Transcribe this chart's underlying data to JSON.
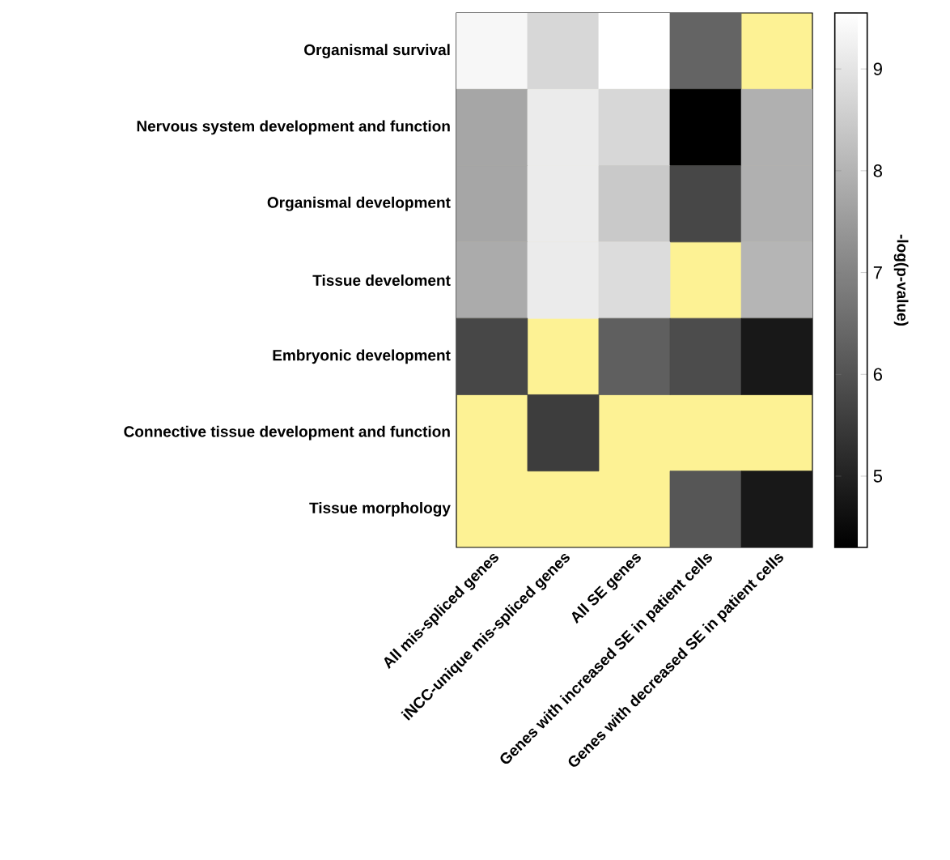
{
  "chart_data": {
    "type": "heatmap",
    "clabel": "-log(p-value)",
    "categories": [
      "All mis-spliced genes",
      "iNCC-unique mis-spliced genes",
      "All SE genes",
      "Genes with increased SE in patient cells",
      "Genes with decreased SE in patient cells"
    ],
    "y_categories": [
      "Organismal survival",
      "Nervous system development and function",
      "Organismal development",
      "Tissue develoment",
      "Embryonic development",
      "Connective tissue development and function",
      "Tissue morphology"
    ],
    "cells": [
      [
        9.35,
        8.7,
        9.55,
        6.35,
        null
      ],
      [
        7.7,
        9.1,
        8.7,
        4.3,
        7.9
      ],
      [
        7.7,
        9.1,
        8.4,
        5.75,
        7.9
      ],
      [
        7.8,
        9.1,
        8.8,
        null,
        8.0
      ],
      [
        5.75,
        null,
        6.25,
        5.85,
        4.8
      ],
      [
        null,
        5.55,
        null,
        null,
        null
      ],
      [
        null,
        null,
        null,
        6.05,
        4.8
      ]
    ],
    "clim": [
      4.3,
      9.55
    ],
    "cticks": [
      5,
      6,
      7,
      8,
      9
    ]
  }
}
